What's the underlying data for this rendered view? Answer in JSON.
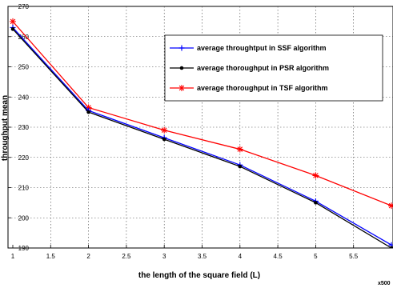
{
  "chart_data": {
    "type": "line",
    "title": "",
    "xlabel": "the length of the square field (L)",
    "ylabel": "throughput mean",
    "x_scale_note": "x500",
    "xlim": [
      1,
      6
    ],
    "ylim": [
      190,
      270
    ],
    "x_ticks": [
      "1",
      "1.5",
      "2",
      "2.5",
      "3",
      "3.5",
      "4",
      "4.5",
      "5",
      "5.5"
    ],
    "y_ticks": [
      "190",
      "200",
      "210",
      "220",
      "230",
      "240",
      "250",
      "260",
      "270"
    ],
    "grid": true,
    "legend_position": "top-right",
    "series": [
      {
        "name": "average throughtput in SSF algorithm",
        "color": "#0000ff",
        "marker": "plus",
        "x": [
          1,
          2,
          3,
          4,
          5,
          6
        ],
        "y": [
          263,
          235.5,
          226.5,
          217.5,
          205.5,
          191
        ]
      },
      {
        "name": "average thoroughput in PSR algorithm",
        "color": "#000000",
        "marker": "dot",
        "x": [
          1,
          2,
          3,
          4,
          5,
          6
        ],
        "y": [
          262.5,
          235,
          226,
          217,
          205,
          190
        ]
      },
      {
        "name": "average thoroughput in TSF algorithm",
        "color": "#ff0000",
        "marker": "star",
        "x": [
          1,
          2,
          3,
          4,
          5,
          6
        ],
        "y": [
          265,
          236.5,
          229,
          222.7,
          214,
          204
        ]
      }
    ]
  }
}
